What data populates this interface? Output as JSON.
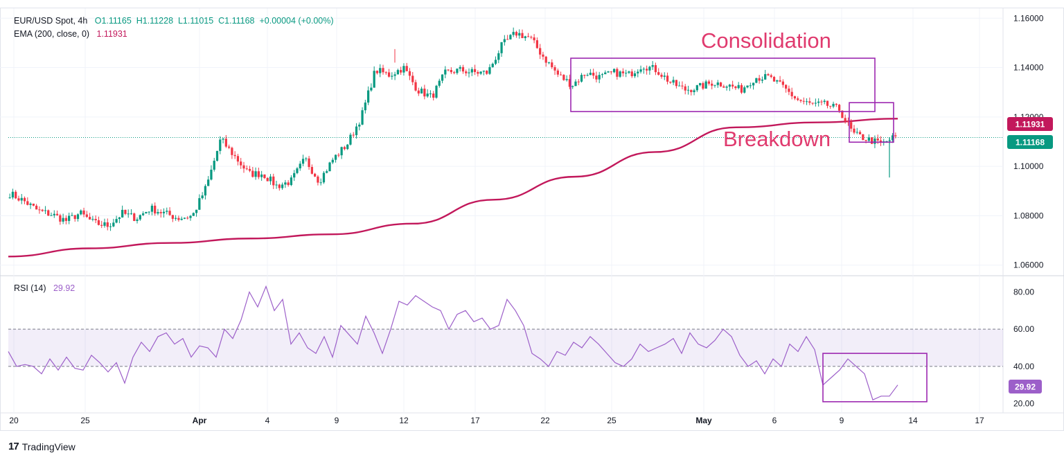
{
  "header": {
    "symbol": "EUR/USD Spot, 4h",
    "open": "O1.11165",
    "high": "H1.11228",
    "low": "L1.11015",
    "close": "C1.11168",
    "change": "+0.00004 (+0.00%)",
    "ema_label": "EMA (200, close, 0)",
    "ema_value": "1.11931",
    "rsi_label": "RSI (14)",
    "rsi_value": "29.92"
  },
  "brand": {
    "name": "TradingView",
    "mark": "17"
  },
  "colors": {
    "up": "#089981",
    "down": "#f23645",
    "ema": "#c2185b",
    "rsi": "#9c5fc9",
    "annotation": "#e03a6e",
    "box": "#9c27b0",
    "grid": "#f0f3fa"
  },
  "chart_data": [
    {
      "type": "candlestick",
      "title": "EUR/USD Spot, 4h",
      "x_ticks": [
        "20",
        "25",
        "Apr",
        "4",
        "9",
        "12",
        "17",
        "22",
        "25",
        "May",
        "6",
        "9",
        "14",
        "17"
      ],
      "y_ticks": [
        "1.16000",
        "1.14000",
        "1.12000",
        "1.10000",
        "1.08000",
        "1.06000"
      ],
      "ylim": [
        1.056,
        1.164
      ],
      "grid": true,
      "last_price": {
        "value": 1.11168,
        "label": "1.11168"
      },
      "series": [
        {
          "name": "EMA (200, close, 0)",
          "last_value": 1.11931,
          "label": "1.11931",
          "values": [
            1.0635,
            1.0668,
            1.069,
            1.0708,
            1.0725,
            1.0768,
            1.0865,
            1.0958,
            1.1058,
            1.1158,
            1.1178,
            1.1193
          ]
        }
      ],
      "close_path": [
        1.089,
        1.086,
        1.082,
        1.0805,
        1.078,
        1.081,
        1.077,
        1.076,
        1.081,
        1.079,
        1.083,
        1.081,
        1.079,
        1.08,
        1.092,
        1.111,
        1.104,
        1.097,
        1.097,
        1.092,
        1.094,
        1.103,
        1.094,
        1.103,
        1.109,
        1.12,
        1.139,
        1.137,
        1.14,
        1.131,
        1.128,
        1.138,
        1.139,
        1.138,
        1.138,
        1.149,
        1.154,
        1.152,
        1.144,
        1.137,
        1.133,
        1.138,
        1.136,
        1.138,
        1.137,
        1.141,
        1.139,
        1.134,
        1.131,
        1.132,
        1.134,
        1.133,
        1.131,
        1.136,
        1.136,
        1.132,
        1.127,
        1.125,
        1.125,
        1.123,
        1.113,
        1.111,
        1.109,
        1.112
      ],
      "annotations": [
        {
          "text": "Consolidation",
          "range": [
            1.1222,
            1.1438
          ]
        },
        {
          "text": "Breakdown",
          "range": [
            1.1098,
            1.1258
          ]
        }
      ]
    },
    {
      "type": "line",
      "title": "RSI (14)",
      "y_ticks": [
        "80.00",
        "60.00",
        "40.00",
        "20.00"
      ],
      "ylim": [
        15,
        88
      ],
      "band": [
        40,
        60
      ],
      "last_value": {
        "value": 29.92,
        "label": "29.92"
      },
      "values": [
        48,
        40,
        41,
        40,
        36,
        44,
        38,
        45,
        39,
        38,
        46,
        42,
        37,
        42,
        31,
        45,
        53,
        48,
        56,
        58,
        52,
        55,
        45,
        51,
        50,
        45,
        60,
        55,
        65,
        80,
        72,
        83,
        70,
        76,
        52,
        58,
        50,
        47,
        56,
        45,
        62,
        57,
        52,
        67,
        58,
        47,
        60,
        75,
        73,
        78,
        75,
        72,
        70,
        60,
        68,
        70,
        64,
        66,
        60,
        62,
        76,
        70,
        62,
        47,
        44,
        40,
        48,
        46,
        53,
        50,
        56,
        52,
        47,
        42,
        40,
        44,
        52,
        48,
        50,
        52,
        55,
        47,
        58,
        52,
        50,
        54,
        60,
        56,
        46,
        40,
        43,
        36,
        44,
        40,
        52,
        48,
        56,
        49,
        30,
        34,
        38,
        44,
        40,
        36,
        22,
        24,
        24,
        30
      ],
      "annotations": [
        {
          "text": "",
          "range": [
            21,
            47
          ]
        }
      ]
    }
  ]
}
